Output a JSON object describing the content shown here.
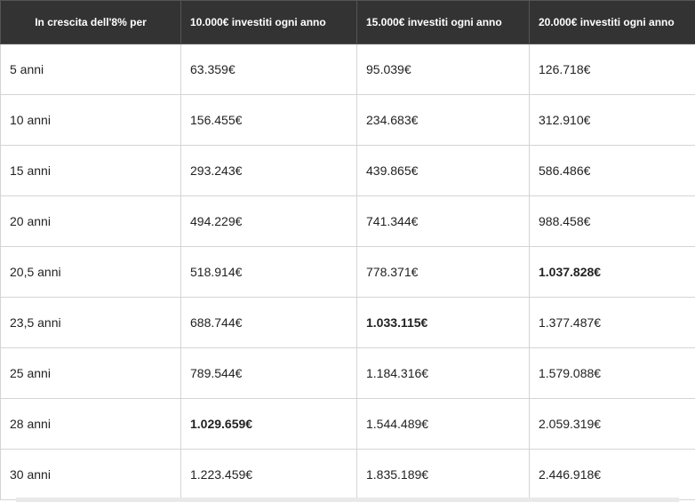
{
  "table": {
    "headers": [
      "In crescita dell'8% per",
      "10.000€ investiti ogni anno",
      "15.000€ investiti ogni anno",
      "20.000€ investiti ogni anno"
    ],
    "rows": [
      [
        "5 anni",
        "63.359€",
        "95.039€",
        "126.718€"
      ],
      [
        "10 anni",
        "156.455€",
        "234.683€",
        "312.910€"
      ],
      [
        "15 anni",
        "293.243€",
        "439.865€",
        "586.486€"
      ],
      [
        "20 anni",
        "494.229€",
        "741.344€",
        "988.458€"
      ],
      [
        "20,5 anni",
        "518.914€",
        "778.371€",
        "1.037.828€"
      ],
      [
        "23,5 anni",
        "688.744€",
        "1.033.115€",
        "1.377.487€"
      ],
      [
        "25 anni",
        "789.544€",
        "1.184.316€",
        "1.579.088€"
      ],
      [
        "28 anni",
        "1.029.659€",
        "1.544.489€",
        "2.059.319€"
      ],
      [
        "30 anni",
        "1.223.459€",
        "1.835.189€",
        "2.446.918€"
      ]
    ]
  }
}
